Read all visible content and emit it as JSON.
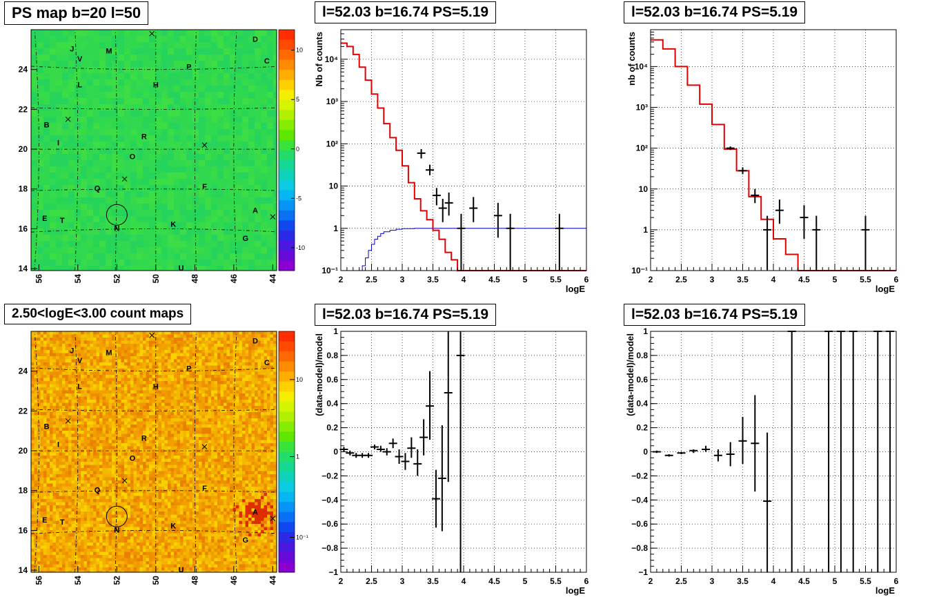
{
  "panels": {
    "map_top_title": "PS map b=20 l=50",
    "map_bottom_title": "2.50<logE<3.00 count maps",
    "spec_left_title": "l=52.03 b=16.74 PS=5.19",
    "spec_right_title": "l=52.03 b=16.74 PS=5.19",
    "resid_left_title": "l=52.03 b=16.74 PS=5.19",
    "resid_right_title": "l=52.03 b=16.74 PS=5.19"
  },
  "colors": {
    "map_top_bg": "#2fd84f",
    "map_bottom_bg": "#f4b000",
    "model_line": "#e00000",
    "background_line": "#0000c8"
  },
  "map": {
    "x_ticks": [
      "56",
      "54",
      "52",
      "50",
      "48",
      "46",
      "44"
    ],
    "y_ticks": [
      "14",
      "16",
      "18",
      "20",
      "22",
      "24"
    ],
    "top_palette_labels": [
      "10",
      "5",
      "0",
      "-5",
      "-10"
    ],
    "bottom_palette_labels": [
      "10",
      "1",
      "10⁻¹"
    ],
    "sources": [
      {
        "label": "A",
        "l": 44.9,
        "b": 16.9
      },
      {
        "label": "B",
        "l": 55.6,
        "b": 21.2
      },
      {
        "label": "C",
        "l": 44.3,
        "b": 24.4
      },
      {
        "label": "D",
        "l": 44.9,
        "b": 25.5
      },
      {
        "label": "E",
        "l": 55.7,
        "b": 16.5
      },
      {
        "label": "F",
        "l": 47.5,
        "b": 18.1
      },
      {
        "label": "G",
        "l": 45.4,
        "b": 15.5
      },
      {
        "label": "H",
        "l": 50.0,
        "b": 23.2
      },
      {
        "label": "I",
        "l": 55.0,
        "b": 20.3
      },
      {
        "label": "J",
        "l": 54.3,
        "b": 25.0
      },
      {
        "label": "K",
        "l": 49.1,
        "b": 16.2
      },
      {
        "label": "L",
        "l": 53.9,
        "b": 23.2
      },
      {
        "label": "M",
        "l": 52.4,
        "b": 24.9
      },
      {
        "label": "N",
        "l": 52.0,
        "b": 16.0
      },
      {
        "label": "O",
        "l": 51.2,
        "b": 19.6
      },
      {
        "label": "P",
        "l": 48.3,
        "b": 24.1
      },
      {
        "label": "Q",
        "l": 53.0,
        "b": 18.0
      },
      {
        "label": "R",
        "l": 50.6,
        "b": 20.6
      },
      {
        "label": "T",
        "l": 54.8,
        "b": 16.4
      },
      {
        "label": "U",
        "l": 48.7,
        "b": 14.0
      },
      {
        "label": "V",
        "l": 53.9,
        "b": 24.5
      }
    ],
    "crosses": [
      {
        "l": 50.2,
        "b": 25.8
      },
      {
        "l": 54.5,
        "b": 21.5
      },
      {
        "l": 47.5,
        "b": 20.2
      },
      {
        "l": 51.6,
        "b": 18.5
      },
      {
        "l": 44.0,
        "b": 16.6
      }
    ],
    "circle": {
      "l": 52.0,
      "b": 16.7
    }
  },
  "chart_data": [
    {
      "type": "line",
      "title": "l=52.03 b=16.74 PS=5.19",
      "xlabel": "logE",
      "ylabel": "Nb of counts",
      "xlim": [
        2,
        6
      ],
      "ylim": [
        0.1,
        50000
      ],
      "log_y": true,
      "x_ticks": [
        "2",
        "2.5",
        "3",
        "3.5",
        "4",
        "4.5",
        "5",
        "5.5",
        "6"
      ],
      "y_ticks": [
        "10⁻¹",
        "1",
        "10",
        "10²",
        "10³",
        "10⁴"
      ],
      "grid": true,
      "model": {
        "edges": [
          2.0,
          2.1,
          2.2,
          2.3,
          2.4,
          2.5,
          2.6,
          2.7,
          2.8,
          2.9,
          3.0,
          3.1,
          3.2,
          3.3,
          3.4,
          3.5,
          3.6,
          3.7,
          3.8,
          3.9,
          4.0,
          4.1,
          4.2,
          6.0
        ],
        "values": [
          24000,
          20000,
          13000,
          6500,
          3200,
          1500,
          700,
          300,
          140,
          70,
          30,
          12,
          5,
          2.6,
          1.6,
          0.9,
          0.55,
          0.27,
          0.18,
          0.07,
          0.05,
          0.1,
          0.1
        ]
      },
      "background": {
        "x": [
          2.0,
          2.3,
          2.35,
          2.4,
          2.45,
          2.5,
          2.55,
          2.6,
          2.65,
          2.7,
          2.8,
          2.9,
          3.0,
          3.2,
          3.5,
          4.0,
          6.0
        ],
        "values": [
          0.08,
          0.1,
          0.13,
          0.2,
          0.3,
          0.42,
          0.55,
          0.65,
          0.75,
          0.83,
          0.9,
          0.95,
          0.98,
          1.0,
          1.0,
          1.0,
          1.0
        ]
      },
      "data": [
        {
          "x": 3.31,
          "y": 60,
          "lo": 45,
          "hi": 75
        },
        {
          "x": 3.45,
          "y": 24,
          "lo": 18,
          "hi": 32
        },
        {
          "x": 3.56,
          "y": 6,
          "lo": 3.5,
          "hi": 9
        },
        {
          "x": 3.66,
          "y": 3,
          "lo": 1.4,
          "hi": 5
        },
        {
          "x": 3.76,
          "y": 4,
          "lo": 2,
          "hi": 7
        },
        {
          "x": 3.96,
          "y": 1,
          "lo": 0.1,
          "hi": 2.2
        },
        {
          "x": 4.16,
          "y": 3,
          "lo": 1.4,
          "hi": 5.5
        },
        {
          "x": 4.56,
          "y": 2,
          "lo": 0.6,
          "hi": 4
        },
        {
          "x": 4.76,
          "y": 1,
          "lo": 0.1,
          "hi": 2.2
        },
        {
          "x": 5.56,
          "y": 1,
          "lo": 0.1,
          "hi": 2.2
        }
      ]
    },
    {
      "type": "line",
      "title": "l=52.03 b=16.74 PS=5.19",
      "xlabel": "logE",
      "ylabel": "nb of counts",
      "xlim": [
        2,
        6
      ],
      "ylim": [
        0.1,
        80000
      ],
      "log_y": true,
      "x_ticks": [
        "2",
        "2.5",
        "3",
        "3.5",
        "4",
        "4.5",
        "5",
        "5.5",
        "6"
      ],
      "y_ticks": [
        "10⁻¹",
        "1",
        "10",
        "10²",
        "10³",
        "10⁴"
      ],
      "grid": true,
      "model": {
        "edges": [
          2.0,
          2.2,
          2.4,
          2.6,
          2.8,
          3.0,
          3.2,
          3.4,
          3.6,
          3.8,
          4.0,
          4.2,
          4.4,
          6.0
        ],
        "values": [
          45000,
          27000,
          10000,
          3500,
          1200,
          380,
          95,
          28,
          6.5,
          1.8,
          0.6,
          0.25,
          0.1
        ]
      },
      "data": [
        {
          "x": 3.3,
          "y": 100,
          "lo": 90,
          "hi": 110
        },
        {
          "x": 3.5,
          "y": 28,
          "lo": 23,
          "hi": 34
        },
        {
          "x": 3.7,
          "y": 7,
          "lo": 4.5,
          "hi": 10
        },
        {
          "x": 3.9,
          "y": 1,
          "lo": 0.1,
          "hi": 2.2
        },
        {
          "x": 4.1,
          "y": 3,
          "lo": 1.4,
          "hi": 5.5
        },
        {
          "x": 4.5,
          "y": 2,
          "lo": 0.6,
          "hi": 4
        },
        {
          "x": 4.7,
          "y": 1,
          "lo": 0.1,
          "hi": 2.2
        },
        {
          "x": 5.5,
          "y": 1,
          "lo": 0.1,
          "hi": 2.2
        }
      ]
    },
    {
      "type": "scatter",
      "title": "l=52.03 b=16.74 PS=5.19",
      "xlabel": "logE",
      "ylabel": "(data-model)/model",
      "xlim": [
        2,
        6
      ],
      "ylim": [
        -1,
        1
      ],
      "x_ticks": [
        "2",
        "2.5",
        "3",
        "3.5",
        "4",
        "4.5",
        "5",
        "5.5",
        "6"
      ],
      "y_ticks": [
        "−1",
        "−0.8",
        "−0.6",
        "−0.4",
        "−0.2",
        "0",
        "0.2",
        "0.4",
        "0.6",
        "0.8",
        "1"
      ],
      "grid": true,
      "data": [
        {
          "x": 2.05,
          "y": 0.02,
          "lo": 0.0,
          "hi": 0.04
        },
        {
          "x": 2.15,
          "y": -0.01,
          "lo": -0.03,
          "hi": 0.01
        },
        {
          "x": 2.25,
          "y": -0.03,
          "lo": -0.05,
          "hi": -0.01
        },
        {
          "x": 2.35,
          "y": -0.03,
          "lo": -0.05,
          "hi": -0.01
        },
        {
          "x": 2.45,
          "y": -0.03,
          "lo": -0.05,
          "hi": -0.01
        },
        {
          "x": 2.55,
          "y": 0.04,
          "lo": 0.02,
          "hi": 0.06
        },
        {
          "x": 2.65,
          "y": 0.02,
          "lo": 0.0,
          "hi": 0.05
        },
        {
          "x": 2.75,
          "y": 0.0,
          "lo": -0.03,
          "hi": 0.03
        },
        {
          "x": 2.85,
          "y": 0.07,
          "lo": 0.03,
          "hi": 0.11
        },
        {
          "x": 2.95,
          "y": -0.04,
          "lo": -0.1,
          "hi": 0.02
        },
        {
          "x": 3.05,
          "y": -0.08,
          "lo": -0.15,
          "hi": -0.01
        },
        {
          "x": 3.15,
          "y": 0.03,
          "lo": -0.05,
          "hi": 0.12
        },
        {
          "x": 3.25,
          "y": -0.1,
          "lo": -0.2,
          "hi": 0.02
        },
        {
          "x": 3.35,
          "y": 0.12,
          "lo": -0.03,
          "hi": 0.27
        },
        {
          "x": 3.45,
          "y": 0.38,
          "lo": 0.1,
          "hi": 0.67
        },
        {
          "x": 3.55,
          "y": -0.39,
          "lo": -0.63,
          "hi": -0.15
        },
        {
          "x": 3.65,
          "y": -0.22,
          "lo": -0.66,
          "hi": 0.22
        },
        {
          "x": 3.75,
          "y": 0.49,
          "lo": -0.25,
          "hi": 1.0
        },
        {
          "x": 3.95,
          "y": 0.8,
          "lo": -1.0,
          "hi": 1.0
        }
      ]
    },
    {
      "type": "scatter",
      "title": "l=52.03 b=16.74 PS=5.19",
      "xlabel": "logE",
      "ylabel": "(data-model)/model",
      "xlim": [
        2,
        6
      ],
      "ylim": [
        -1,
        1
      ],
      "x_ticks": [
        "2",
        "2.5",
        "3",
        "3.5",
        "4",
        "4.5",
        "5",
        "5.5",
        "6"
      ],
      "y_ticks": [
        "−1",
        "−0.8",
        "−0.6",
        "−0.4",
        "−0.2",
        "0",
        "0.2",
        "0.4",
        "0.6",
        "0.8",
        "1"
      ],
      "grid": true,
      "data": [
        {
          "x": 2.1,
          "y": 0.0,
          "lo": -0.01,
          "hi": 0.01
        },
        {
          "x": 2.3,
          "y": -0.03,
          "lo": -0.04,
          "hi": -0.02
        },
        {
          "x": 2.5,
          "y": -0.01,
          "lo": -0.02,
          "hi": 0.0
        },
        {
          "x": 2.7,
          "y": 0.01,
          "lo": -0.01,
          "hi": 0.02
        },
        {
          "x": 2.9,
          "y": 0.02,
          "lo": 0.0,
          "hi": 0.05
        },
        {
          "x": 3.1,
          "y": -0.03,
          "lo": -0.08,
          "hi": 0.02
        },
        {
          "x": 3.3,
          "y": -0.02,
          "lo": -0.12,
          "hi": 0.08
        },
        {
          "x": 3.5,
          "y": 0.09,
          "lo": -0.1,
          "hi": 0.29
        },
        {
          "x": 3.7,
          "y": 0.07,
          "lo": -0.33,
          "hi": 0.47
        },
        {
          "x": 3.9,
          "y": -0.41,
          "lo": -1.0,
          "hi": 0.16
        },
        {
          "x": 4.3,
          "y": 1.0,
          "lo": -1.0,
          "hi": 1.0
        },
        {
          "x": 4.9,
          "y": 1.0,
          "lo": -1.0,
          "hi": 1.0
        },
        {
          "x": 5.1,
          "y": 1.0,
          "lo": -1.0,
          "hi": 1.0
        },
        {
          "x": 5.3,
          "y": 1.0,
          "lo": -1.0,
          "hi": 1.0
        },
        {
          "x": 5.7,
          "y": 1.0,
          "lo": -1.0,
          "hi": 1.0
        },
        {
          "x": 5.9,
          "y": 1.0,
          "lo": -1.0,
          "hi": 1.0
        }
      ]
    }
  ]
}
